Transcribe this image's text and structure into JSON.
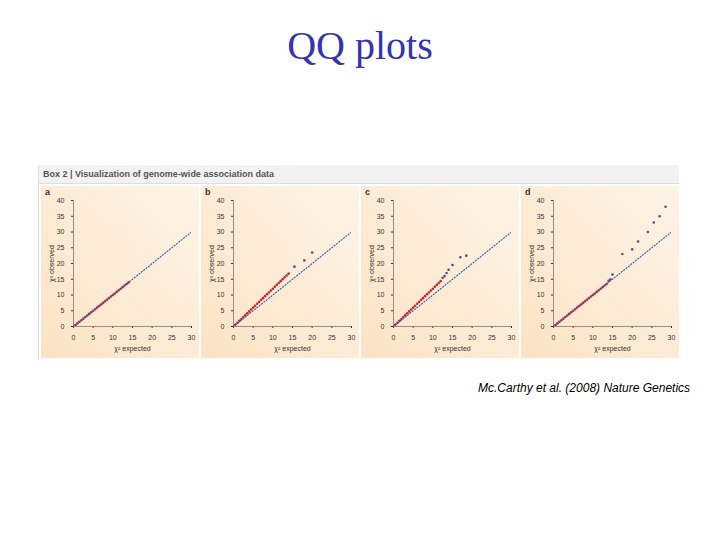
{
  "slide": {
    "title": "QQ plots",
    "box_header": "Box 2 | Visualization of genome-wide association data",
    "caption": "Mc.Carthy et al. (2008) Nature Genetics"
  },
  "chart_data": [
    {
      "type": "scatter",
      "title": "a",
      "x_label": "χ² expected",
      "y_label": "χ² observed",
      "xlim": [
        0,
        30
      ],
      "ylim": [
        0,
        40
      ],
      "xticks": [
        0,
        5,
        10,
        15,
        20,
        25,
        30
      ],
      "yticks": [
        0,
        5,
        10,
        15,
        20,
        25,
        30,
        35,
        40
      ],
      "series": [
        {
          "type": "scatter",
          "color": "#c0282d",
          "x": [
            0.1,
            0.5,
            1,
            1.5,
            2,
            2.5,
            3,
            3.5,
            4,
            4.5,
            5,
            5.5,
            6,
            6.5,
            7,
            7.5,
            8,
            8.5,
            9,
            9.5,
            10,
            10.5,
            11,
            11.5,
            12,
            12.5,
            13,
            13.5,
            14
          ],
          "values": [
            0.1,
            0.5,
            1,
            1.5,
            2,
            2.5,
            3,
            3.5,
            4,
            4.5,
            5,
            5.5,
            6,
            6.5,
            7,
            7.5,
            8,
            8.5,
            9,
            9.5,
            10,
            10.5,
            11,
            11.5,
            12,
            12.5,
            13,
            13.5,
            14
          ]
        },
        {
          "type": "line",
          "line_style": "dotted",
          "color": "#3a5ea8",
          "x": [
            0,
            30
          ],
          "values": [
            0,
            30
          ]
        }
      ]
    },
    {
      "type": "scatter",
      "title": "b",
      "x_label": "χ² expected",
      "y_label": "χ² observed",
      "xlim": [
        0,
        30
      ],
      "ylim": [
        0,
        40
      ],
      "xticks": [
        0,
        5,
        10,
        15,
        20,
        25,
        30
      ],
      "yticks": [
        0,
        5,
        10,
        15,
        20,
        25,
        30,
        35,
        40
      ],
      "series": [
        {
          "type": "scatter",
          "color": "#c0282d",
          "x": [
            0.1,
            0.5,
            1,
            1.5,
            2,
            2.5,
            3,
            3.5,
            4,
            4.5,
            5,
            5.5,
            6,
            6.5,
            7,
            7.5,
            8,
            8.5,
            9,
            9.5,
            10,
            10.5,
            11,
            11.5,
            12,
            12.5,
            13,
            13.5,
            14
          ],
          "values": [
            0.1,
            0.6,
            1.2,
            1.8,
            2.4,
            3,
            3.6,
            4.2,
            4.8,
            5.4,
            6,
            6.6,
            7.2,
            7.8,
            8.4,
            9,
            9.6,
            10.2,
            10.8,
            11.4,
            12,
            12.6,
            13.2,
            13.8,
            14.4,
            15,
            15.6,
            16.2,
            16.8
          ]
        },
        {
          "type": "scatter",
          "color": "#5a4a8a",
          "x": [
            15.5,
            18,
            20
          ],
          "values": [
            19,
            21,
            23.5
          ]
        },
        {
          "type": "line",
          "line_style": "dotted",
          "color": "#3a5ea8",
          "x": [
            0,
            30
          ],
          "values": [
            0,
            30
          ]
        }
      ]
    },
    {
      "type": "scatter",
      "title": "c",
      "x_label": "χ² expected",
      "y_label": "χ² observed",
      "xlim": [
        0,
        30
      ],
      "ylim": [
        0,
        40
      ],
      "xticks": [
        0,
        5,
        10,
        15,
        20,
        25,
        30
      ],
      "yticks": [
        0,
        5,
        10,
        15,
        20,
        25,
        30,
        35,
        40
      ],
      "series": [
        {
          "type": "scatter",
          "color": "#c0282d",
          "x": [
            0.1,
            0.5,
            1,
            1.5,
            2,
            2.5,
            3,
            3.5,
            4,
            4.5,
            5,
            5.5,
            6,
            6.5,
            7,
            7.5,
            8,
            8.5,
            9,
            9.5,
            10,
            10.5,
            11,
            11.5,
            12
          ],
          "values": [
            0.1,
            0.6,
            1.2,
            1.8,
            2.4,
            3,
            3.6,
            4.2,
            4.8,
            5.4,
            6,
            6.6,
            7.2,
            7.8,
            8.4,
            9,
            9.6,
            10.2,
            10.8,
            11.4,
            12,
            12.6,
            13.2,
            13.8,
            14.4
          ]
        },
        {
          "type": "scatter",
          "color": "#5a4a8a",
          "x": [
            12.5,
            13,
            13.5,
            14,
            15,
            17,
            18.5
          ],
          "values": [
            15.5,
            16,
            17,
            18,
            19.5,
            22,
            22.5
          ]
        },
        {
          "type": "line",
          "line_style": "dotted",
          "color": "#3a5ea8",
          "x": [
            0,
            30
          ],
          "values": [
            0,
            30
          ]
        }
      ]
    },
    {
      "type": "scatter",
      "title": "d",
      "x_label": "χ² expected",
      "y_label": "χ² observed",
      "xlim": [
        0,
        30
      ],
      "ylim": [
        0,
        40
      ],
      "xticks": [
        0,
        5,
        10,
        15,
        20,
        25,
        30
      ],
      "yticks": [
        0,
        5,
        10,
        15,
        20,
        25,
        30,
        35,
        40
      ],
      "series": [
        {
          "type": "scatter",
          "color": "#c0282d",
          "x": [
            0.1,
            0.5,
            1,
            1.5,
            2,
            2.5,
            3,
            3.5,
            4,
            4.5,
            5,
            5.5,
            6,
            6.5,
            7,
            7.5,
            8,
            8.5,
            9,
            9.5,
            10,
            10.5,
            11,
            11.5,
            12,
            12.5,
            13,
            13.5
          ],
          "values": [
            0.1,
            0.5,
            1,
            1.5,
            2,
            2.5,
            3,
            3.5,
            4,
            4.5,
            5,
            5.5,
            6,
            6.5,
            7,
            7.5,
            8,
            8.5,
            9,
            9.5,
            10,
            10.5,
            11,
            11.5,
            12,
            12.5,
            13,
            13.5
          ]
        },
        {
          "type": "scatter",
          "color": "#5a4a8a",
          "x": [
            14,
            14.5,
            15,
            17.5,
            20,
            21.5,
            24,
            25.5,
            27,
            28.5
          ],
          "values": [
            14.5,
            15,
            16.5,
            23,
            24.5,
            27,
            30,
            33,
            35,
            38
          ]
        },
        {
          "type": "line",
          "line_style": "dotted",
          "color": "#3a5ea8",
          "x": [
            0,
            30
          ],
          "values": [
            0,
            30
          ]
        }
      ]
    }
  ]
}
